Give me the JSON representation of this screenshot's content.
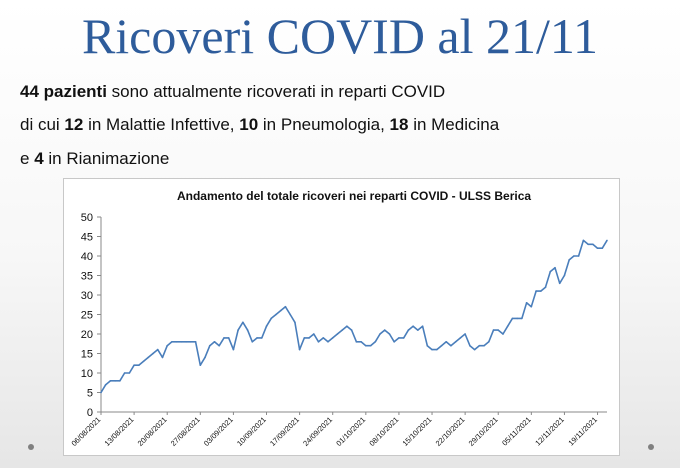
{
  "slide": {
    "title": "Ricoveri COVID al 21/11",
    "line1": {
      "b1": "44 pazienti",
      "t1": " sono attualmente ricoverati in reparti COVID"
    },
    "line2": {
      "t1": "di cui ",
      "b1": "12",
      "t2": " in Malattie Infettive, ",
      "b2": "10",
      "t3": " in Pneumologia, ",
      "b3": "18",
      "t4": " in Medicina"
    },
    "line3": {
      "t1": "e ",
      "b1": "4",
      "t2": " in Rianimazione"
    }
  },
  "colors": {
    "title": "#2e5c9b",
    "line": "#4a7ebb",
    "grid": "#d9d9d9",
    "text": "#111111"
  },
  "chart_data": {
    "type": "line",
    "title": "Andamento del totale ricoveri nei reparti COVID - ULSS Berica",
    "xlabel": "",
    "ylabel": "",
    "ylim": [
      0,
      50
    ],
    "yticks": [
      0,
      5,
      10,
      15,
      20,
      25,
      30,
      35,
      40,
      45,
      50
    ],
    "grid": false,
    "legend": "none",
    "x_tick_labels": [
      "06/08/2021",
      "13/08/2021",
      "20/08/2021",
      "27/08/2021",
      "03/09/2021",
      "10/09/2021",
      "17/09/2021",
      "24/09/2021",
      "01/10/2021",
      "08/10/2021",
      "15/10/2021",
      "22/10/2021",
      "29/10/2021",
      "05/11/2021",
      "12/11/2021",
      "19/11/2021"
    ],
    "x_start": "06/08/2021",
    "x_end": "21/11/2021",
    "series": [
      {
        "name": "",
        "values": [
          5,
          7,
          8,
          8,
          8,
          10,
          10,
          12,
          12,
          13,
          14,
          15,
          16,
          14,
          17,
          18,
          18,
          18,
          18,
          18,
          18,
          12,
          14,
          17,
          18,
          17,
          19,
          19,
          16,
          21,
          23,
          21,
          18,
          19,
          19,
          22,
          24,
          25,
          26,
          27,
          25,
          23,
          16,
          19,
          19,
          20,
          18,
          19,
          18,
          19,
          20,
          21,
          22,
          21,
          18,
          18,
          17,
          17,
          18,
          20,
          21,
          20,
          18,
          19,
          19,
          21,
          22,
          21,
          22,
          17,
          16,
          16,
          17,
          18,
          17,
          18,
          19,
          20,
          17,
          16,
          17,
          17,
          18,
          21,
          21,
          20,
          22,
          24,
          24,
          24,
          28,
          27,
          31,
          31,
          32,
          36,
          37,
          33,
          35,
          39,
          40,
          40,
          44,
          43,
          43,
          42,
          42,
          44
        ]
      }
    ]
  }
}
